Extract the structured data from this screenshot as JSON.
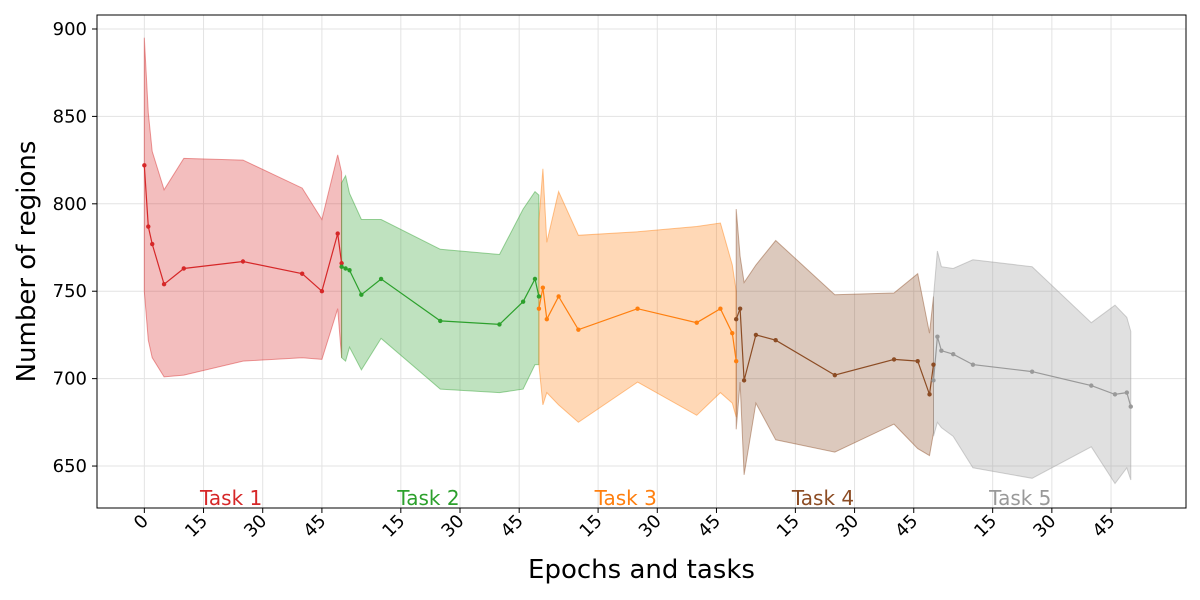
{
  "chart_data": {
    "type": "line",
    "xlabel": "Epochs and tasks",
    "ylabel": "Number of regions",
    "ylim": [
      626,
      908
    ],
    "xlim": [
      -12,
      264
    ],
    "grid": true,
    "y_ticks": [
      650,
      700,
      750,
      800,
      850,
      900
    ],
    "x_ticks": [
      {
        "x": 0,
        "label": "0"
      },
      {
        "x": 15,
        "label": "15"
      },
      {
        "x": 30,
        "label": "30"
      },
      {
        "x": 45,
        "label": "45"
      },
      {
        "x": 65,
        "label": "15"
      },
      {
        "x": 80,
        "label": "30"
      },
      {
        "x": 95,
        "label": "45"
      },
      {
        "x": 115,
        "label": "15"
      },
      {
        "x": 130,
        "label": "30"
      },
      {
        "x": 145,
        "label": "45"
      },
      {
        "x": 165,
        "label": "15"
      },
      {
        "x": 180,
        "label": "30"
      },
      {
        "x": 195,
        "label": "45"
      },
      {
        "x": 215,
        "label": "15"
      },
      {
        "x": 230,
        "label": "30"
      },
      {
        "x": 245,
        "label": "45"
      }
    ],
    "series": [
      {
        "name": "Task 1",
        "color": "#d62728",
        "label_x": 22,
        "x": [
          0,
          1,
          2,
          5,
          10,
          25,
          40,
          45,
          49,
          50
        ],
        "y": [
          822,
          787,
          777,
          754,
          763,
          767,
          760,
          750,
          783,
          766
        ],
        "upper": [
          895,
          852,
          830,
          808,
          826,
          825,
          809,
          791,
          828,
          818
        ],
        "lower": [
          750,
          722,
          712,
          701,
          702,
          710,
          712,
          711,
          740,
          712
        ]
      },
      {
        "name": "Task 2",
        "color": "#2ca02c",
        "label_x": 72,
        "x": [
          50,
          51,
          52,
          55,
          60,
          75,
          90,
          96,
          99,
          100
        ],
        "y": [
          764,
          763,
          762,
          748,
          757,
          733,
          731,
          744,
          757,
          747
        ],
        "upper": [
          812,
          816,
          806,
          791,
          791,
          774,
          771,
          797,
          807,
          805
        ],
        "lower": [
          712,
          710,
          718,
          705,
          723,
          694,
          692,
          694,
          708,
          708
        ]
      },
      {
        "name": "Task 3",
        "color": "#ff7f0e",
        "label_x": 122,
        "x": [
          100,
          101,
          102,
          105,
          110,
          125,
          140,
          146,
          149,
          150
        ],
        "y": [
          740,
          752,
          734,
          747,
          728,
          740,
          732,
          740,
          726,
          710
        ],
        "upper": [
          790,
          820,
          778,
          807,
          782,
          784,
          787,
          789,
          765,
          750
        ],
        "lower": [
          708,
          685,
          692,
          685,
          675,
          698,
          679,
          692,
          686,
          678
        ]
      },
      {
        "name": "Task 4",
        "color": "#8c4c24",
        "label_x": 172,
        "x": [
          150,
          151,
          152,
          155,
          160,
          175,
          190,
          196,
          199,
          200
        ],
        "y": [
          734,
          740,
          699,
          725,
          722,
          702,
          711,
          710,
          691,
          708
        ],
        "upper": [
          797,
          770,
          755,
          765,
          779,
          748,
          749,
          760,
          726,
          747
        ],
        "lower": [
          671,
          698,
          645,
          686,
          665,
          658,
          674,
          660,
          656,
          669
        ]
      },
      {
        "name": "Task 5",
        "color": "#999999",
        "label_x": 222,
        "x": [
          200,
          201,
          202,
          205,
          210,
          225,
          240,
          246,
          249,
          250
        ],
        "y": [
          699,
          724,
          716,
          714,
          708,
          704,
          696,
          691,
          692,
          684
        ],
        "upper": [
          747,
          773,
          764,
          763,
          768,
          764,
          732,
          742,
          735,
          727
        ],
        "lower": [
          667,
          675,
          672,
          667,
          649,
          643,
          661,
          640,
          649,
          642
        ]
      }
    ]
  }
}
